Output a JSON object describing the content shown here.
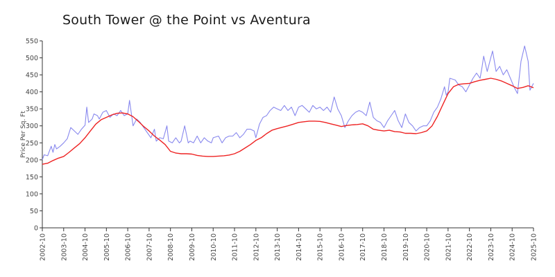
{
  "chart_data": {
    "type": "line",
    "title": "South Tower @ the Point vs Aventura",
    "xlabel": "",
    "ylabel": "Price Per Sq. Ft",
    "ylim": [
      0,
      550
    ],
    "yticks": [
      0,
      50,
      100,
      150,
      200,
      250,
      300,
      350,
      400,
      450,
      500,
      550
    ],
    "xticks": [
      "2002-10",
      "2003-10",
      "2004-10",
      "2005-10",
      "2006-10",
      "2007-10",
      "2008-10",
      "2009-10",
      "2010-10",
      "2011-10",
      "2012-10",
      "2013-10",
      "2014-10",
      "2015-10",
      "2016-10",
      "2017-10",
      "2018-10",
      "2019-10",
      "2020-10",
      "2021-10",
      "2022-10",
      "2023-10",
      "2024-10",
      "2025-10"
    ],
    "xrange": [
      "2002-10",
      "2025-10"
    ],
    "grid": false,
    "legend": "none",
    "series": [
      {
        "color": "#8888ee",
        "points": [
          [
            "2002-10",
            200
          ],
          [
            "2002-11",
            215
          ],
          [
            "2003-01",
            212
          ],
          [
            "2003-03",
            240
          ],
          [
            "2003-04",
            222
          ],
          [
            "2003-05",
            245
          ],
          [
            "2003-06",
            232
          ],
          [
            "2003-08",
            240
          ],
          [
            "2003-10",
            250
          ],
          [
            "2003-12",
            262
          ],
          [
            "2004-02",
            295
          ],
          [
            "2004-04",
            285
          ],
          [
            "2004-06",
            275
          ],
          [
            "2004-08",
            290
          ],
          [
            "2004-10",
            302
          ],
          [
            "2004-11",
            355
          ],
          [
            "2004-12",
            310
          ],
          [
            "2005-02",
            320
          ],
          [
            "2005-03",
            335
          ],
          [
            "2005-05",
            330
          ],
          [
            "2005-06",
            320
          ],
          [
            "2005-08",
            340
          ],
          [
            "2005-10",
            345
          ],
          [
            "2005-12",
            325
          ],
          [
            "2006-02",
            335
          ],
          [
            "2006-04",
            330
          ],
          [
            "2006-06",
            345
          ],
          [
            "2006-08",
            330
          ],
          [
            "2006-10",
            335
          ],
          [
            "2006-11",
            375
          ],
          [
            "2007-01",
            300
          ],
          [
            "2007-03",
            320
          ],
          [
            "2007-05",
            310
          ],
          [
            "2007-07",
            295
          ],
          [
            "2007-09",
            280
          ],
          [
            "2007-11",
            265
          ],
          [
            "2008-01",
            290
          ],
          [
            "2008-02",
            255
          ],
          [
            "2008-04",
            265
          ],
          [
            "2008-06",
            262
          ],
          [
            "2008-08",
            300
          ],
          [
            "2008-09",
            255
          ],
          [
            "2008-11",
            250
          ],
          [
            "2009-01",
            265
          ],
          [
            "2009-03",
            250
          ],
          [
            "2009-04",
            255
          ],
          [
            "2009-06",
            300
          ],
          [
            "2009-08",
            250
          ],
          [
            "2009-09",
            255
          ],
          [
            "2009-11",
            250
          ],
          [
            "2010-01",
            270
          ],
          [
            "2010-03",
            250
          ],
          [
            "2010-05",
            265
          ],
          [
            "2010-07",
            255
          ],
          [
            "2010-09",
            250
          ],
          [
            "2010-10",
            265
          ],
          [
            "2011-01",
            270
          ],
          [
            "2011-03",
            250
          ],
          [
            "2011-05",
            265
          ],
          [
            "2011-07",
            270
          ],
          [
            "2011-09",
            270
          ],
          [
            "2011-11",
            280
          ],
          [
            "2012-01",
            265
          ],
          [
            "2012-03",
            275
          ],
          [
            "2012-05",
            290
          ],
          [
            "2012-07",
            290
          ],
          [
            "2012-09",
            285
          ],
          [
            "2012-10",
            265
          ],
          [
            "2012-12",
            305
          ],
          [
            "2013-02",
            325
          ],
          [
            "2013-04",
            330
          ],
          [
            "2013-06",
            345
          ],
          [
            "2013-08",
            355
          ],
          [
            "2013-10",
            350
          ],
          [
            "2013-12",
            345
          ],
          [
            "2014-02",
            360
          ],
          [
            "2014-04",
            345
          ],
          [
            "2014-06",
            355
          ],
          [
            "2014-08",
            330
          ],
          [
            "2014-10",
            355
          ],
          [
            "2014-12",
            360
          ],
          [
            "2015-02",
            350
          ],
          [
            "2015-04",
            340
          ],
          [
            "2015-06",
            360
          ],
          [
            "2015-08",
            350
          ],
          [
            "2015-10",
            355
          ],
          [
            "2015-12",
            345
          ],
          [
            "2016-02",
            355
          ],
          [
            "2016-04",
            340
          ],
          [
            "2016-06",
            385
          ],
          [
            "2016-08",
            350
          ],
          [
            "2016-10",
            330
          ],
          [
            "2016-12",
            295
          ],
          [
            "2017-02",
            315
          ],
          [
            "2017-04",
            330
          ],
          [
            "2017-06",
            340
          ],
          [
            "2017-08",
            345
          ],
          [
            "2017-10",
            340
          ],
          [
            "2017-12",
            330
          ],
          [
            "2018-02",
            370
          ],
          [
            "2018-04",
            325
          ],
          [
            "2018-06",
            315
          ],
          [
            "2018-08",
            310
          ],
          [
            "2018-10",
            295
          ],
          [
            "2018-12",
            315
          ],
          [
            "2019-02",
            330
          ],
          [
            "2019-04",
            345
          ],
          [
            "2019-06",
            315
          ],
          [
            "2019-08",
            295
          ],
          [
            "2019-10",
            335
          ],
          [
            "2019-12",
            310
          ],
          [
            "2020-02",
            300
          ],
          [
            "2020-04",
            285
          ],
          [
            "2020-06",
            295
          ],
          [
            "2020-08",
            300
          ],
          [
            "2020-10",
            300
          ],
          [
            "2020-12",
            315
          ],
          [
            "2021-02",
            340
          ],
          [
            "2021-04",
            355
          ],
          [
            "2021-06",
            380
          ],
          [
            "2021-08",
            415
          ],
          [
            "2021-09",
            390
          ],
          [
            "2021-10",
            400
          ],
          [
            "2021-11",
            440
          ],
          [
            "2022-02",
            435
          ],
          [
            "2022-04",
            420
          ],
          [
            "2022-06",
            415
          ],
          [
            "2022-08",
            400
          ],
          [
            "2022-10",
            420
          ],
          [
            "2022-12",
            440
          ],
          [
            "2023-02",
            455
          ],
          [
            "2023-04",
            440
          ],
          [
            "2023-05",
            470
          ],
          [
            "2023-06",
            505
          ],
          [
            "2023-08",
            460
          ],
          [
            "2023-10",
            500
          ],
          [
            "2023-11",
            520
          ],
          [
            "2024-01",
            460
          ],
          [
            "2024-03",
            475
          ],
          [
            "2024-05",
            450
          ],
          [
            "2024-07",
            465
          ],
          [
            "2024-09",
            440
          ],
          [
            "2024-11",
            415
          ],
          [
            "2025-01",
            395
          ],
          [
            "2025-03",
            490
          ],
          [
            "2025-05",
            535
          ],
          [
            "2025-07",
            490
          ],
          [
            "2025-08",
            405
          ],
          [
            "2025-10",
            425
          ]
        ]
      },
      {
        "color": "#ee2222",
        "points": [
          [
            "2002-10",
            187
          ],
          [
            "2003-01",
            190
          ],
          [
            "2003-04",
            198
          ],
          [
            "2003-07",
            205
          ],
          [
            "2003-10",
            210
          ],
          [
            "2004-01",
            222
          ],
          [
            "2004-04",
            235
          ],
          [
            "2004-07",
            248
          ],
          [
            "2004-10",
            265
          ],
          [
            "2005-01",
            285
          ],
          [
            "2005-04",
            305
          ],
          [
            "2005-07",
            318
          ],
          [
            "2005-10",
            325
          ],
          [
            "2006-01",
            332
          ],
          [
            "2006-04",
            337
          ],
          [
            "2006-07",
            338
          ],
          [
            "2006-10",
            335
          ],
          [
            "2007-01",
            327
          ],
          [
            "2007-04",
            313
          ],
          [
            "2007-07",
            298
          ],
          [
            "2007-10",
            285
          ],
          [
            "2008-01",
            270
          ],
          [
            "2008-04",
            258
          ],
          [
            "2008-07",
            245
          ],
          [
            "2008-10",
            225
          ],
          [
            "2009-01",
            220
          ],
          [
            "2009-04",
            218
          ],
          [
            "2009-07",
            218
          ],
          [
            "2009-10",
            217
          ],
          [
            "2010-01",
            213
          ],
          [
            "2010-04",
            211
          ],
          [
            "2010-07",
            210
          ],
          [
            "2010-10",
            210
          ],
          [
            "2011-01",
            211
          ],
          [
            "2011-04",
            212
          ],
          [
            "2011-07",
            214
          ],
          [
            "2011-10",
            218
          ],
          [
            "2012-01",
            225
          ],
          [
            "2012-04",
            235
          ],
          [
            "2012-07",
            245
          ],
          [
            "2012-10",
            257
          ],
          [
            "2013-01",
            265
          ],
          [
            "2013-04",
            277
          ],
          [
            "2013-07",
            287
          ],
          [
            "2013-10",
            292
          ],
          [
            "2014-01",
            296
          ],
          [
            "2014-04",
            300
          ],
          [
            "2014-07",
            305
          ],
          [
            "2014-10",
            310
          ],
          [
            "2015-01",
            312
          ],
          [
            "2015-04",
            314
          ],
          [
            "2015-07",
            314
          ],
          [
            "2015-10",
            313
          ],
          [
            "2016-01",
            310
          ],
          [
            "2016-04",
            306
          ],
          [
            "2016-07",
            302
          ],
          [
            "2016-10",
            298
          ],
          [
            "2017-01",
            301
          ],
          [
            "2017-04",
            303
          ],
          [
            "2017-07",
            304
          ],
          [
            "2017-10",
            306
          ],
          [
            "2018-01",
            300
          ],
          [
            "2018-04",
            290
          ],
          [
            "2018-07",
            287
          ],
          [
            "2018-10",
            285
          ],
          [
            "2019-01",
            287
          ],
          [
            "2019-04",
            283
          ],
          [
            "2019-07",
            282
          ],
          [
            "2019-10",
            278
          ],
          [
            "2020-01",
            278
          ],
          [
            "2020-04",
            277
          ],
          [
            "2020-07",
            280
          ],
          [
            "2020-10",
            285
          ],
          [
            "2021-01",
            300
          ],
          [
            "2021-04",
            328
          ],
          [
            "2021-07",
            362
          ],
          [
            "2021-10",
            395
          ],
          [
            "2022-01",
            415
          ],
          [
            "2022-04",
            422
          ],
          [
            "2022-07",
            424
          ],
          [
            "2022-10",
            425
          ],
          [
            "2023-01",
            430
          ],
          [
            "2023-04",
            434
          ],
          [
            "2023-07",
            437
          ],
          [
            "2023-10",
            440
          ],
          [
            "2024-01",
            437
          ],
          [
            "2024-04",
            432
          ],
          [
            "2024-07",
            425
          ],
          [
            "2024-10",
            418
          ],
          [
            "2025-01",
            410
          ],
          [
            "2025-04",
            413
          ],
          [
            "2025-07",
            418
          ],
          [
            "2025-10",
            412
          ]
        ]
      }
    ]
  }
}
